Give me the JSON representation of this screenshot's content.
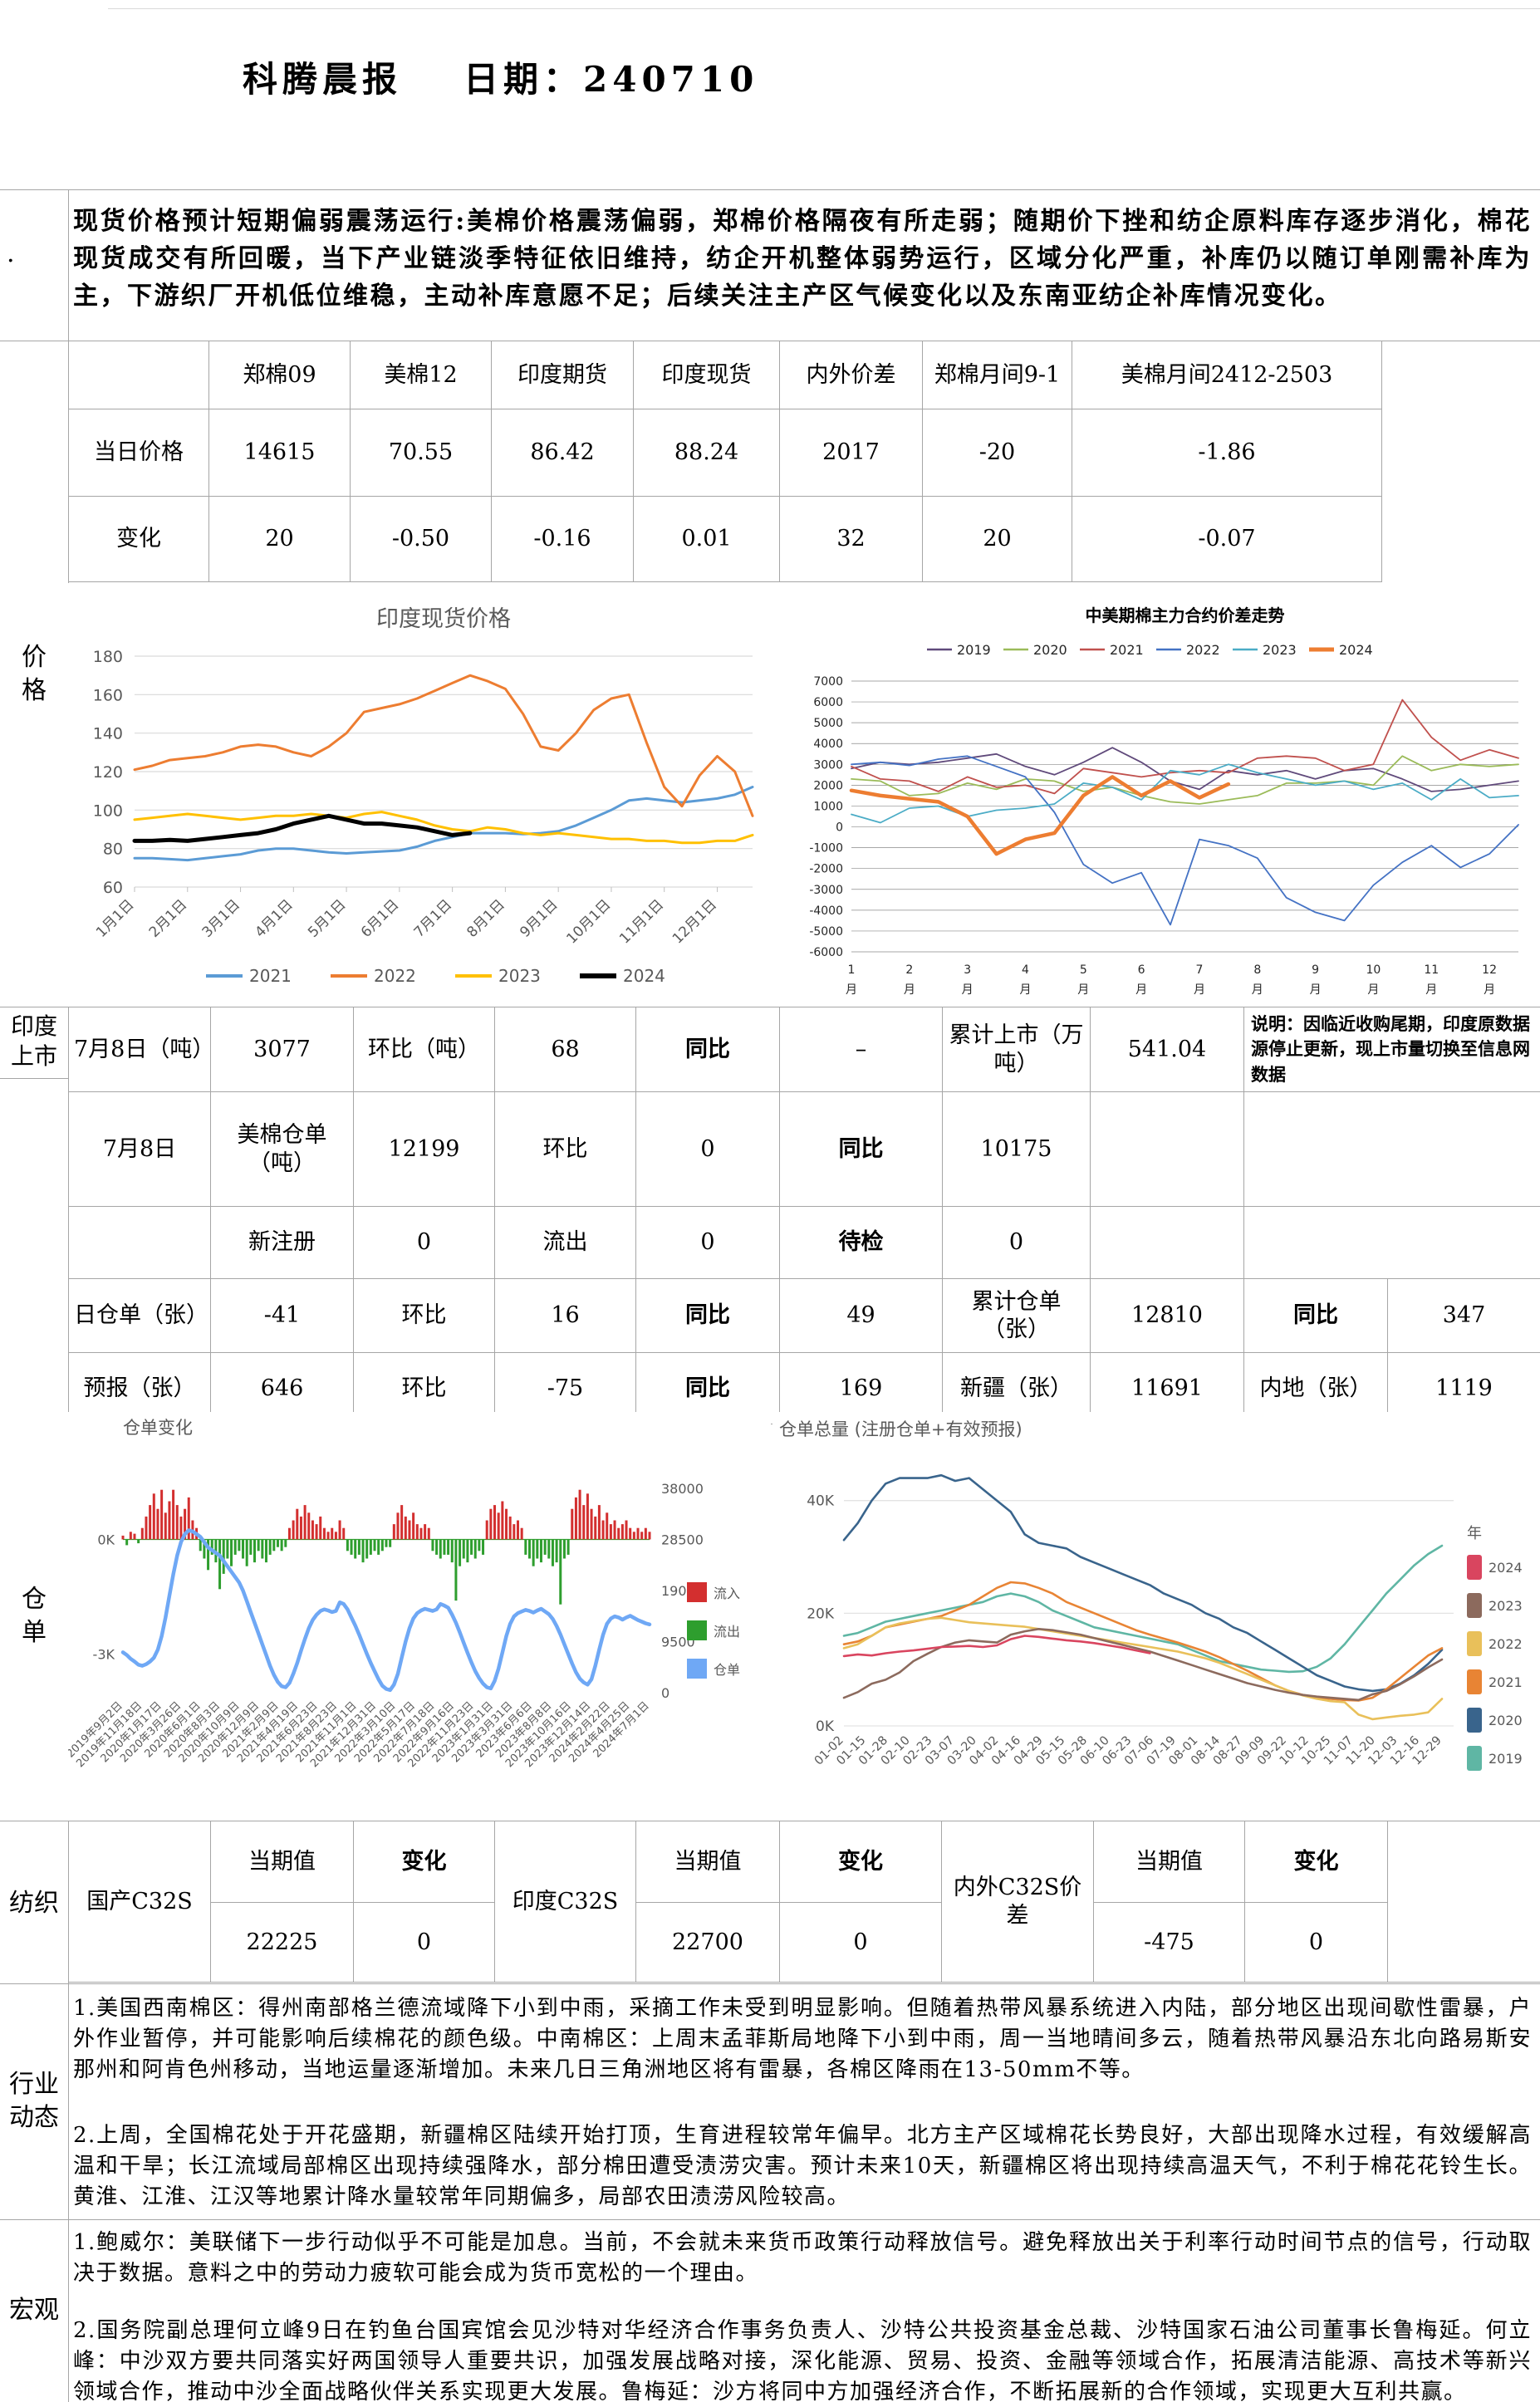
{
  "header": {
    "title": "科腾晨报",
    "date": "日期：240710"
  },
  "side": {
    "marker": ".",
    "price": [
      "价",
      "格"
    ],
    "listing": [
      "印度",
      "上市"
    ],
    "warehouse": [
      "仓",
      "单"
    ],
    "textile": "纺织",
    "industry": [
      "行业",
      "动态"
    ],
    "macro": "宏观"
  },
  "summary_text": "现货价格预计短期偏弱震荡运行:美棉价格震荡偏弱，郑棉价格隔夜有所走弱；随期价下挫和纺企原料库存逐步消化，棉花现货成交有所回暖，当下产业链淡季特征依旧维持，纺企开机整体弱势运行，区域分化严重，补库仍以随订单刚需补库为主，下游织厂开机低位维稳，主动补库意愿不足；后续关注主产区气候变化以及东南亚纺企补库情况变化。",
  "price_table": {
    "headers": [
      "",
      "郑棉09",
      "美棉12",
      "印度期货",
      "印度现货",
      "内外价差",
      "郑棉月间9-1",
      "美棉月间2412-2503"
    ],
    "rows": [
      [
        "当日价格",
        "14615",
        "70.55",
        "86.42",
        "88.24",
        "2017",
        "-20",
        "-1.86"
      ],
      [
        "变化",
        "20",
        "-0.50",
        "-0.16",
        "0.01",
        "32",
        "20",
        "-0.07"
      ]
    ]
  },
  "listing_table": {
    "r1": [
      "7月8日（吨）",
      "3077",
      "环比（吨）",
      "68",
      "同比",
      "–",
      "累计上市（万吨）",
      "541.04"
    ],
    "note": "说明：因临近收购尾期，印度原数据源停止更新，现上市量切换至信息网数据",
    "r2": [
      "7月8日",
      "美棉仓单（吨）",
      "12199",
      "环比",
      "0",
      "同比",
      "10175"
    ],
    "r3": [
      "",
      "新注册",
      "0",
      "流出",
      "0",
      "待检",
      "0"
    ],
    "r4": [
      "日仓单（张）",
      "-41",
      "环比",
      "16",
      "同比",
      "49",
      "累计仓单（张）",
      "12810",
      "同比",
      "347"
    ],
    "r5": [
      "预报（张）",
      "646",
      "环比",
      "-75",
      "同比",
      "169",
      "新疆（张）",
      "11691",
      "内地（张）",
      "1119"
    ]
  },
  "textile_table": {
    "col_value": "当期值",
    "col_change": "变化",
    "groups": [
      {
        "label": "国产C32S",
        "value": "22225",
        "change": "0"
      },
      {
        "label": "印度C32S",
        "value": "22700",
        "change": "0"
      },
      {
        "label": "内外C32S价差",
        "value": "-475",
        "change": "0"
      }
    ]
  },
  "industry": {
    "p1": "1.美国西南棉区：得州南部格兰德流域降下小到中雨，采摘工作未受到明显影响。但随着热带风暴系统进入内陆，部分地区出现间歇性雷暴，户外作业暂停，并可能影响后续棉花的颜色级。中南棉区：上周末孟菲斯局地降下小到中雨，周一当地晴间多云，随着热带风暴沿东北向路易斯安那州和阿肯色州移动，当地运量逐渐增加。未来几日三角洲地区将有雷暴，各棉区降雨在13-50mm不等。",
    "p2": "2.上周，全国棉花处于开花盛期，新疆棉区陆续开始打顶，生育进程较常年偏早。北方主产区域棉花长势良好，大部出现降水过程，有效缓解高温和干旱；长江流域局部棉区出现持续强降水，部分棉田遭受渍涝灾害。预计未来10天，新疆棉区将出现持续高温天气，不利于棉花花铃生长。黄淮、江淮、江汉等地累计降水量较常年同期偏多，局部农田渍涝风险较高。"
  },
  "macro": {
    "p1": "1.鲍威尔：美联储下一步行动似乎不可能是加息。当前，不会就未来货币政策行动释放信号。避免释放出关于利率行动时间节点的信号，行动取决于数据。意料之中的劳动力疲软可能会成为货币宽松的一个理由。",
    "p2": "2.国务院副总理何立峰9日在钓鱼台国宾馆会见沙特对华经济合作事务负责人、沙特公共投资基金总裁、沙特国家石油公司董事长鲁梅延。何立峰：中沙双方要共同落实好两国领导人重要共识，加强发展战略对接，深化能源、贸易、投资、金融等领域合作，拓展清洁能源、高技术等新兴领域合作，推动中沙全面战略伙伴关系实现更大发展。鲁梅延：沙方将同中方加强经济合作，不断拓展新的合作领域，实现更大互利共赢。"
  },
  "chart_data": {
    "india_spot": {
      "type": "line",
      "title": "印度现货价格",
      "ylim": [
        60,
        180
      ],
      "ystep": 20,
      "x_labels": [
        "1月1日",
        "2月1日",
        "3月1日",
        "4月1日",
        "5月1日",
        "6月1日",
        "7月1日",
        "8月1日",
        "9月1日",
        "10月1日",
        "11月1日",
        "12月1日"
      ],
      "series": [
        {
          "name": "2021",
          "color": "#5B9BD5",
          "width": 3,
          "values": [
            75,
            75,
            74.5,
            74,
            75,
            76,
            77,
            79,
            80,
            80,
            79,
            78,
            77.5,
            78,
            78.5,
            79,
            81,
            84,
            86,
            88,
            88,
            88,
            87.5,
            88,
            89,
            92,
            96,
            100,
            105,
            106,
            105,
            104,
            105,
            106,
            108,
            112
          ]
        },
        {
          "name": "2022",
          "color": "#ED7D31",
          "width": 3,
          "values": [
            121,
            123,
            126,
            127,
            128,
            130,
            133,
            134,
            133,
            130,
            128,
            133,
            140,
            151,
            153,
            155,
            158,
            162,
            166,
            170,
            167,
            163,
            150,
            133,
            131,
            140,
            152,
            158,
            160,
            135,
            112,
            102,
            118,
            128,
            120,
            97
          ]
        },
        {
          "name": "2023",
          "color": "#FFC000",
          "width": 3,
          "values": [
            95,
            96,
            97,
            98,
            97,
            96,
            95,
            96,
            97,
            97,
            98,
            97,
            96,
            98,
            99,
            97,
            95,
            92,
            90,
            89,
            91,
            90,
            88,
            87,
            88,
            87,
            86,
            85,
            85,
            84,
            84,
            83,
            83,
            84,
            84,
            87
          ]
        },
        {
          "name": "2024",
          "color": "#000000",
          "width": 5,
          "values": [
            84,
            84,
            84.5,
            84,
            85,
            86,
            87,
            88,
            90,
            93,
            95,
            97,
            95,
            93,
            93,
            92,
            91,
            89,
            87,
            88
          ]
        }
      ]
    },
    "spread": {
      "type": "line",
      "title": "中美期棉主力合约价差走势",
      "ylim": [
        -6000,
        7000
      ],
      "ystep": 1000,
      "x_labels": [
        "1",
        "2",
        "3",
        "4",
        "5",
        "6",
        "7",
        "8",
        "9",
        "10",
        "11",
        "12"
      ],
      "x_suffix": "月",
      "series": [
        {
          "name": "2019",
          "color": "#604A7B",
          "values": [
            2800,
            3100,
            3000,
            3100,
            3300,
            3500,
            2900,
            2500,
            3100,
            3800,
            3100,
            2200,
            1800,
            2700,
            2500,
            2700,
            2300,
            2700,
            2800,
            2300,
            1700,
            1800,
            2000,
            2200
          ]
        },
        {
          "name": "2020",
          "color": "#9BBB59",
          "values": [
            2300,
            2200,
            1500,
            1600,
            2100,
            1800,
            2300,
            2200,
            1700,
            1900,
            1500,
            1200,
            1100,
            1300,
            1500,
            2100,
            2100,
            2200,
            2000,
            3400,
            2700,
            3000,
            2900,
            3000
          ]
        },
        {
          "name": "2021",
          "color": "#C0504D",
          "values": [
            2900,
            2300,
            2200,
            1700,
            2400,
            1900,
            2000,
            1600,
            2800,
            2600,
            2400,
            2600,
            2700,
            2600,
            3300,
            3400,
            3300,
            2700,
            3000,
            6100,
            4300,
            3200,
            3700,
            3300
          ]
        },
        {
          "name": "2022",
          "color": "#4472C4",
          "values": [
            3000,
            3100,
            2950,
            3250,
            3400,
            2900,
            2400,
            700,
            -1800,
            -2700,
            -2200,
            -4700,
            -600,
            -900,
            -1500,
            -3400,
            -4100,
            -4500,
            -2800,
            -1700,
            -900,
            -1950,
            -1300,
            100
          ]
        },
        {
          "name": "2023",
          "color": "#4BACC6",
          "values": [
            600,
            200,
            900,
            1000,
            500,
            800,
            900,
            1100,
            2100,
            1900,
            1300,
            2700,
            2500,
            3000,
            2600,
            2300,
            2000,
            2200,
            1800,
            2100,
            1300,
            2300,
            1400,
            1500
          ]
        },
        {
          "name": "2024",
          "color": "#ED7D31",
          "values": [
            1750,
            1500,
            1350,
            1200,
            500,
            -1300,
            -600,
            -300,
            1500,
            2400,
            1500,
            2200,
            1400,
            2050
          ]
        }
      ]
    },
    "wr_change": {
      "type": "bar+line",
      "title": "仓单变化",
      "left_axis": [
        "0K",
        "-3K"
      ],
      "right_axis": [
        38000,
        28500,
        19000,
        9500,
        0
      ],
      "legend": [
        "流入",
        "流出",
        "仓单"
      ],
      "colors": {
        "inflow": "#D32F2F",
        "outflow": "#2E9E2E",
        "receipt": "#6FA8F5"
      },
      "x_labels": [
        "2019年9月2日",
        "2019年11月18日",
        "2020年1月17日",
        "2020年3月26日",
        "2020年6月1日",
        "2020年8月3日",
        "2020年10月9日",
        "2020年12月9日",
        "2021年2月9日",
        "2021年4月19日",
        "2021年6月23日",
        "2021年8月23日",
        "2021年11月1日",
        "2021年12月31日",
        "2022年3月10日",
        "2022年5月17日",
        "2022年7月18日",
        "2022年9月16日",
        "2022年11月23日",
        "2023年1月31日",
        "2023年3月31日",
        "2023年6月6日",
        "2023年8月8日",
        "2023年10月16日",
        "2023年12月14日",
        "2024年2月22日",
        "2024年4月25日",
        "2024年7月1日"
      ],
      "bars": [
        0.1,
        -0.15,
        0.2,
        0.15,
        -0.1,
        0.3,
        0.6,
        0.9,
        1.2,
        0.8,
        1.3,
        0.7,
        1.0,
        1.3,
        0.9,
        0.6,
        0.8,
        1.1,
        0.5,
        0.3,
        -0.3,
        -0.5,
        -0.8,
        -0.4,
        -0.6,
        -1.3,
        -0.9,
        -0.5,
        -0.7,
        -0.4,
        -0.3,
        -0.5,
        -0.7,
        -0.4,
        -0.6,
        -0.3,
        -0.5,
        -0.6,
        -0.4,
        -0.3,
        -0.2,
        -0.3,
        -0.2,
        0.3,
        0.5,
        0.8,
        0.6,
        0.9,
        0.7,
        0.5,
        0.4,
        0.6,
        0.3,
        0.2,
        0.3,
        0.2,
        0.5,
        0.3,
        -0.3,
        -0.4,
        -0.5,
        -0.4,
        -0.6,
        -0.5,
        -0.4,
        -0.3,
        -0.4,
        -0.3,
        -0.2,
        -0.2,
        0.4,
        0.7,
        0.9,
        0.6,
        0.5,
        0.7,
        0.4,
        0.3,
        0.4,
        0.3,
        -0.3,
        -0.4,
        -0.5,
        -0.4,
        -0.4,
        -0.6,
        -1.6,
        -0.7,
        -0.5,
        -0.6,
        -0.4,
        -0.5,
        -0.3,
        -0.4,
        0.5,
        0.8,
        0.9,
        0.7,
        1.0,
        0.8,
        0.6,
        0.4,
        0.5,
        0.3,
        -0.4,
        -0.5,
        -0.7,
        -0.5,
        -0.6,
        -0.4,
        -0.5,
        -0.7,
        -0.6,
        -1.7,
        -0.5,
        -0.4,
        0.8,
        1.1,
        1.3,
        0.9,
        1.2,
        0.8,
        0.6,
        0.9,
        0.5,
        0.7,
        0.4,
        0.5,
        0.3,
        0.4,
        0.5,
        0.3,
        0.2,
        0.3,
        0.2,
        0.3,
        0.2
      ],
      "line": [
        7.5,
        7,
        6.3,
        5.8,
        5.2,
        5,
        5.3,
        5.8,
        6.5,
        8,
        10.5,
        14,
        18,
        22,
        25.5,
        28,
        29.5,
        30.2,
        30,
        29.5,
        29,
        28,
        27,
        26.5,
        26,
        25.5,
        24.5,
        23.5,
        22.5,
        21.5,
        20.5,
        19,
        17,
        15,
        13,
        11,
        9,
        7,
        5,
        3.3,
        2,
        1.2,
        1,
        1.8,
        3.5,
        5.5,
        7.8,
        10,
        12,
        13.5,
        14.5,
        15.2,
        15.5,
        15.3,
        15,
        15.2,
        16.8,
        16.5,
        15.5,
        14,
        12.5,
        10.8,
        9,
        7.2,
        5.5,
        4,
        2.5,
        1.3,
        0.7,
        0.5,
        1.5,
        3.5,
        6.5,
        9.5,
        12,
        13.8,
        14.8,
        15.3,
        15.6,
        15.4,
        15.2,
        15.5,
        16.5,
        16.2,
        15.8,
        14.5,
        13,
        11.2,
        9.3,
        7.4,
        5.6,
        4,
        2.7,
        1.7,
        1,
        0.8,
        2.2,
        4.5,
        7.5,
        10.5,
        12.8,
        14.2,
        14.8,
        15.1,
        15.4,
        15.2,
        14.9,
        15.3,
        15.6,
        15.1,
        14.6,
        13.7,
        12.4,
        10.8,
        9,
        7.2,
        5.4,
        3.8,
        2.6,
        1.9,
        1.5,
        2.5,
        5,
        8,
        10.8,
        12.8,
        13.8,
        14.2,
        14,
        13.6,
        14,
        14.3,
        13.9,
        13.5,
        13.2,
        12.9,
        12.7
      ]
    },
    "wr_total": {
      "type": "line",
      "title": "仓单总量 (注册仓单+有效预报)",
      "legend_title": "年",
      "y_ticks": [
        {
          "v": 0,
          "label": "0K"
        },
        {
          "v": 20,
          "label": "20K"
        },
        {
          "v": 40,
          "label": "40K"
        }
      ],
      "x_labels": [
        "01-02",
        "01-15",
        "01-28",
        "02-10",
        "02-23",
        "03-07",
        "03-20",
        "04-02",
        "04-16",
        "04-29",
        "05-15",
        "05-28",
        "06-10",
        "06-23",
        "07-06",
        "07-19",
        "08-01",
        "08-14",
        "08-27",
        "09-09",
        "09-22",
        "10-12",
        "10-25",
        "11-07",
        "11-20",
        "12-03",
        "12-16",
        "12-29"
      ],
      "series": [
        {
          "name": "2024",
          "color": "#D9455F",
          "values": [
            12.4,
            12.7,
            12.5,
            12.9,
            13.2,
            13.4,
            13.7,
            14,
            14.1,
            14.2,
            14,
            14.3,
            15.4,
            16,
            15.8,
            15.5,
            15.2,
            15,
            14.7,
            14.3,
            13.9,
            13.4,
            12.9
          ]
        },
        {
          "name": "2023",
          "color": "#8C6A5D",
          "values": [
            5,
            6,
            7.5,
            8.2,
            9.5,
            11.5,
            12.8,
            14,
            14.8,
            15.2,
            15,
            14.8,
            16.2,
            16.8,
            17.2,
            17,
            16.6,
            16.2,
            15.6,
            15,
            14.4,
            13.8,
            13.2,
            12.4,
            11.6,
            10.8,
            10,
            9.2,
            8.4,
            7.6,
            7,
            6.4,
            5.9,
            5.5,
            5.2,
            5,
            4.8,
            4.6,
            5.6,
            6.2,
            7.4,
            8.8,
            10.4,
            11.8
          ]
        },
        {
          "name": "2022",
          "color": "#E9C05A",
          "values": [
            13.8,
            14.5,
            16,
            17.5,
            18.2,
            18.6,
            19,
            19.2,
            18.8,
            18.4,
            18.2,
            18,
            17.8,
            17.6,
            17.2,
            16.8,
            16.4,
            16,
            15.6,
            15.2,
            14.8,
            14.4,
            14,
            13.6,
            13.2,
            12.6,
            12,
            11.2,
            10.2,
            9.2,
            8.2,
            7.2,
            6.2,
            5.4,
            4.8,
            4.4,
            4.2,
            2,
            1.2,
            1.5,
            1.8,
            2,
            2.4,
            4.8
          ]
        },
        {
          "name": "2021",
          "color": "#E88434",
          "values": [
            14.5,
            15,
            16,
            17.5,
            18,
            18.5,
            19,
            19.5,
            20.5,
            21.5,
            23,
            24.5,
            25.5,
            25.3,
            24.5,
            23.5,
            22,
            21,
            20,
            19,
            18,
            17,
            16.2,
            15.5,
            14.8,
            14,
            13.2,
            12.2,
            11,
            9.8,
            8.5,
            7.2,
            6.2,
            5.5,
            5,
            4.8,
            4.6,
            4.5,
            5,
            6.5,
            8.5,
            10.5,
            12.5,
            13.8
          ]
        },
        {
          "name": "2020",
          "color": "#39648C",
          "values": [
            33,
            36,
            40,
            43,
            44,
            44,
            44,
            44.5,
            43.5,
            44,
            42,
            40,
            38,
            34,
            32.5,
            32,
            31.5,
            30,
            29,
            28,
            27,
            26,
            25,
            23.5,
            22.5,
            21.5,
            20,
            19,
            17.5,
            16.5,
            15,
            13.5,
            12,
            10.5,
            9,
            8,
            7,
            6.5,
            6.2,
            6.5,
            7.5,
            9,
            11,
            13.5
          ]
        },
        {
          "name": "2019",
          "color": "#5FB6A4",
          "values": [
            16,
            16.5,
            17.5,
            18.5,
            19,
            19.5,
            20,
            20.5,
            21,
            21.5,
            22,
            23,
            23.5,
            23,
            22,
            20.5,
            19.5,
            18.5,
            17.5,
            17,
            16.5,
            16,
            15.5,
            15,
            14.5,
            13.5,
            12.5,
            11.5,
            11,
            10.5,
            10,
            9.8,
            9.6,
            9.7,
            10.5,
            12,
            14.5,
            17.5,
            20.5,
            23.5,
            26,
            28.5,
            30.5,
            32
          ]
        }
      ]
    }
  }
}
